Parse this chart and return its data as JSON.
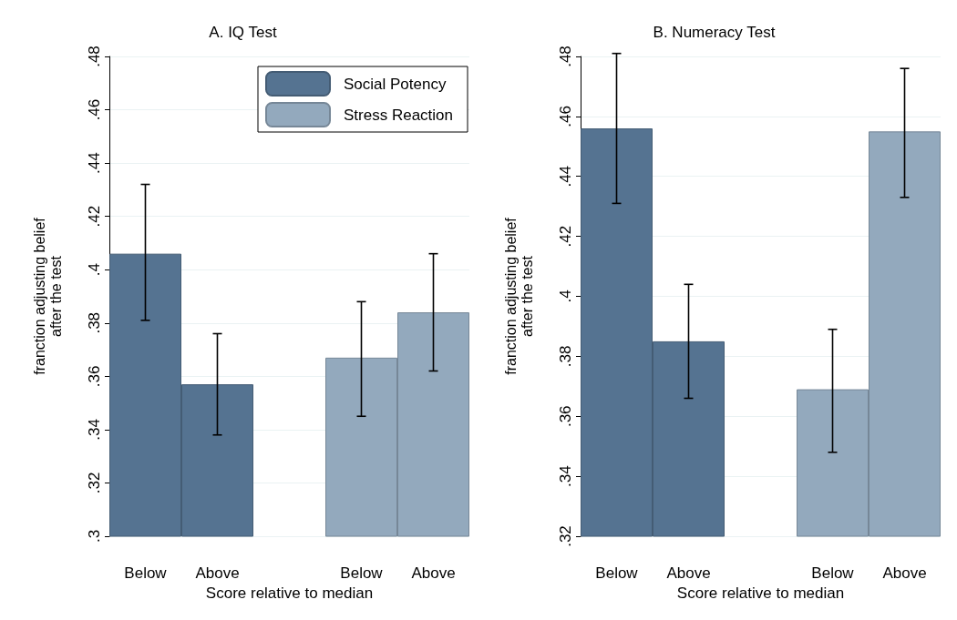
{
  "chart_data": [
    {
      "type": "bar",
      "title": "A. IQ Test",
      "xlabel": "Score relative to median",
      "ylabel": "franction adjusting belief\nafter the test",
      "categories": [
        "Below",
        "Above",
        null,
        "Below",
        "Above"
      ],
      "series": [
        {
          "name": "Social Potency",
          "color": "#557391",
          "values": [
            0.406,
            0.357,
            null,
            null,
            null
          ],
          "errors": [
            [
              0.381,
              0.432
            ],
            [
              0.338,
              0.376
            ],
            null,
            null,
            null
          ]
        },
        {
          "name": "Stress Reaction",
          "color": "#93a9bd",
          "values": [
            null,
            null,
            null,
            0.367,
            0.384
          ],
          "errors": [
            null,
            null,
            null,
            [
              0.345,
              0.388
            ],
            [
              0.362,
              0.406
            ]
          ]
        }
      ],
      "ylim": [
        0.3,
        0.48
      ],
      "yticks": [
        {
          "value": 0.3,
          "label": ".3"
        },
        {
          "value": 0.32,
          "label": ".32"
        },
        {
          "value": 0.34,
          "label": ".34"
        },
        {
          "value": 0.36,
          "label": ".36"
        },
        {
          "value": 0.38,
          "label": ".38"
        },
        {
          "value": 0.4,
          "label": ".4"
        },
        {
          "value": 0.42,
          "label": ".42"
        },
        {
          "value": 0.44,
          "label": ".44"
        },
        {
          "value": 0.46,
          "label": ".46"
        },
        {
          "value": 0.48,
          "label": ".48"
        }
      ],
      "grid": "y",
      "legend": "top right"
    },
    {
      "type": "bar",
      "title": "B. Numeracy Test",
      "xlabel": "Score relative to median",
      "ylabel": "franction adjusting belief\nafter the test",
      "categories": [
        "Below",
        "Above",
        null,
        "Below",
        "Above"
      ],
      "series": [
        {
          "color": "#557391",
          "values": [
            0.456,
            0.385,
            null,
            null,
            null
          ],
          "errors": [
            [
              0.431,
              0.481
            ],
            [
              0.366,
              0.404
            ],
            null,
            null,
            null
          ]
        },
        {
          "color": "#93a9bd",
          "values": [
            null,
            null,
            null,
            0.369,
            0.455
          ],
          "errors": [
            null,
            null,
            null,
            [
              0.348,
              0.389
            ],
            [
              0.433,
              0.476
            ]
          ]
        }
      ],
      "ylim": [
        0.32,
        0.48
      ],
      "yticks": [
        {
          "value": 0.32,
          "label": ".32"
        },
        {
          "value": 0.34,
          "label": ".34"
        },
        {
          "value": 0.36,
          "label": ".36"
        },
        {
          "value": 0.38,
          "label": ".38"
        },
        {
          "value": 0.4,
          "label": ".4"
        },
        {
          "value": 0.42,
          "label": ".42"
        },
        {
          "value": 0.44,
          "label": ".44"
        },
        {
          "value": 0.46,
          "label": ".46"
        },
        {
          "value": 0.48,
          "label": ".48"
        }
      ],
      "grid": "y",
      "legend": false
    }
  ]
}
